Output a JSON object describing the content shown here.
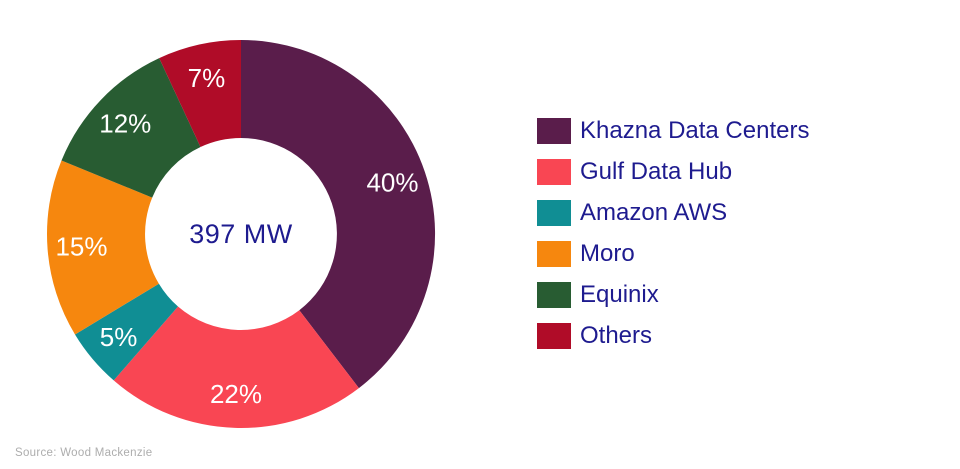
{
  "chart_data": {
    "type": "pie",
    "donut": true,
    "title": "",
    "center_label": "397 MW",
    "categories": [
      "Khazna Data Centers",
      "Gulf Data Hub",
      "Amazon AWS",
      "Moro",
      "Equinix",
      "Others"
    ],
    "values": [
      40,
      22,
      5,
      15,
      12,
      7
    ],
    "value_labels": [
      "40%",
      "22%",
      "5%",
      "15%",
      "12%",
      "7%"
    ],
    "colors": [
      "#5A1D4B",
      "#F94653",
      "#108E94",
      "#F6870E",
      "#285C32",
      "#B00C28"
    ],
    "legend_position": "right",
    "start_angle_deg": 0,
    "direction": "clockwise"
  },
  "legend": {
    "items": [
      {
        "label": "Khazna Data Centers",
        "color": "#5A1D4B"
      },
      {
        "label": "Gulf Data Hub",
        "color": "#F94653"
      },
      {
        "label": "Amazon AWS",
        "color": "#108E94"
      },
      {
        "label": "Moro",
        "color": "#F6870E"
      },
      {
        "label": "Equinix",
        "color": "#285C32"
      },
      {
        "label": "Others",
        "color": "#B00C28"
      }
    ]
  },
  "footer": {
    "source": "Source: Wood Mackenzie"
  },
  "colors": {
    "background": "#FFFFFF",
    "slice_label_text": "#FFFFFF",
    "center_text": "#1E1B8F",
    "legend_text": "#1E1B8F",
    "source_text": "#ADADAD"
  }
}
